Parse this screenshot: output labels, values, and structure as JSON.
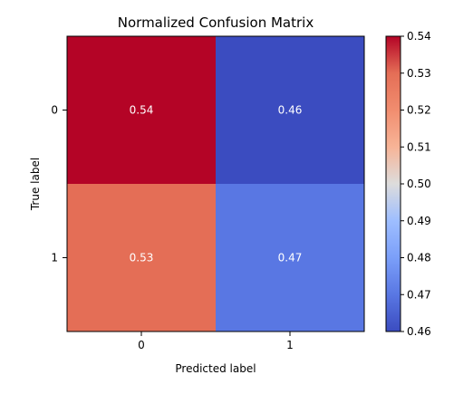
{
  "chart_data": {
    "type": "heatmap",
    "title": "Normalized Confusion Matrix",
    "xlabel": "Predicted label",
    "ylabel": "True label",
    "x_categories": [
      "0",
      "1"
    ],
    "y_categories": [
      "0",
      "1"
    ],
    "values": [
      [
        0.54,
        0.46
      ],
      [
        0.53,
        0.47
      ]
    ],
    "cell_labels": [
      [
        "0.54",
        "0.46"
      ],
      [
        "0.53",
        "0.47"
      ]
    ],
    "colormap": "coolwarm",
    "colorbar": {
      "range": [
        0.46,
        0.54
      ],
      "ticks": [
        0.46,
        0.47,
        0.48,
        0.49,
        0.5,
        0.51,
        0.52,
        0.53,
        0.54
      ],
      "tick_labels": [
        "0.46",
        "0.47",
        "0.48",
        "0.49",
        "0.50",
        "0.51",
        "0.52",
        "0.53",
        "0.54"
      ]
    },
    "grid": false
  }
}
